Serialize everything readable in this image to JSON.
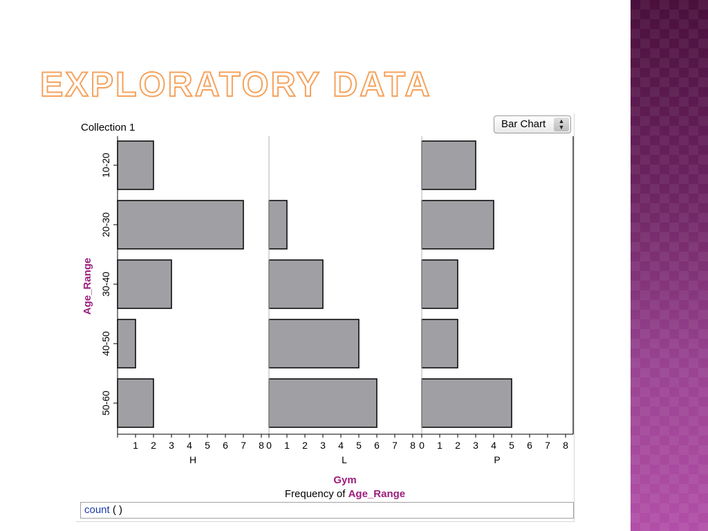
{
  "slide": {
    "title": "Exploratory Data"
  },
  "collection_label": "Collection 1",
  "chart_type_select": {
    "value": "Bar Chart"
  },
  "formula": {
    "function": "count",
    "args": "(  )"
  },
  "colors": {
    "bar_fill": "#a0a0a4",
    "bar_stroke": "#000000",
    "accent": "#9c1e7c",
    "title_outline": "#f5a25c"
  },
  "chart_data": {
    "type": "bar",
    "orientation": "horizontal",
    "categories": [
      "10-20",
      "20-30",
      "30-40",
      "40-50",
      "50-60"
    ],
    "series": [
      {
        "name": "H",
        "values": [
          2,
          7,
          3,
          1,
          2
        ]
      },
      {
        "name": "L",
        "values": [
          0,
          1,
          3,
          5,
          6
        ]
      },
      {
        "name": "P",
        "values": [
          3,
          4,
          2,
          2,
          5
        ]
      }
    ],
    "xlim": [
      0,
      8
    ],
    "xticks": [
      0,
      1,
      2,
      3,
      4,
      5,
      6,
      7,
      8
    ],
    "ylabel": "Age_Range",
    "xlabel": "Gym",
    "xlabel_sub_prefix": "Frequency of ",
    "xlabel_sub_var": "Age_Range",
    "grid": false,
    "legend": "none"
  }
}
